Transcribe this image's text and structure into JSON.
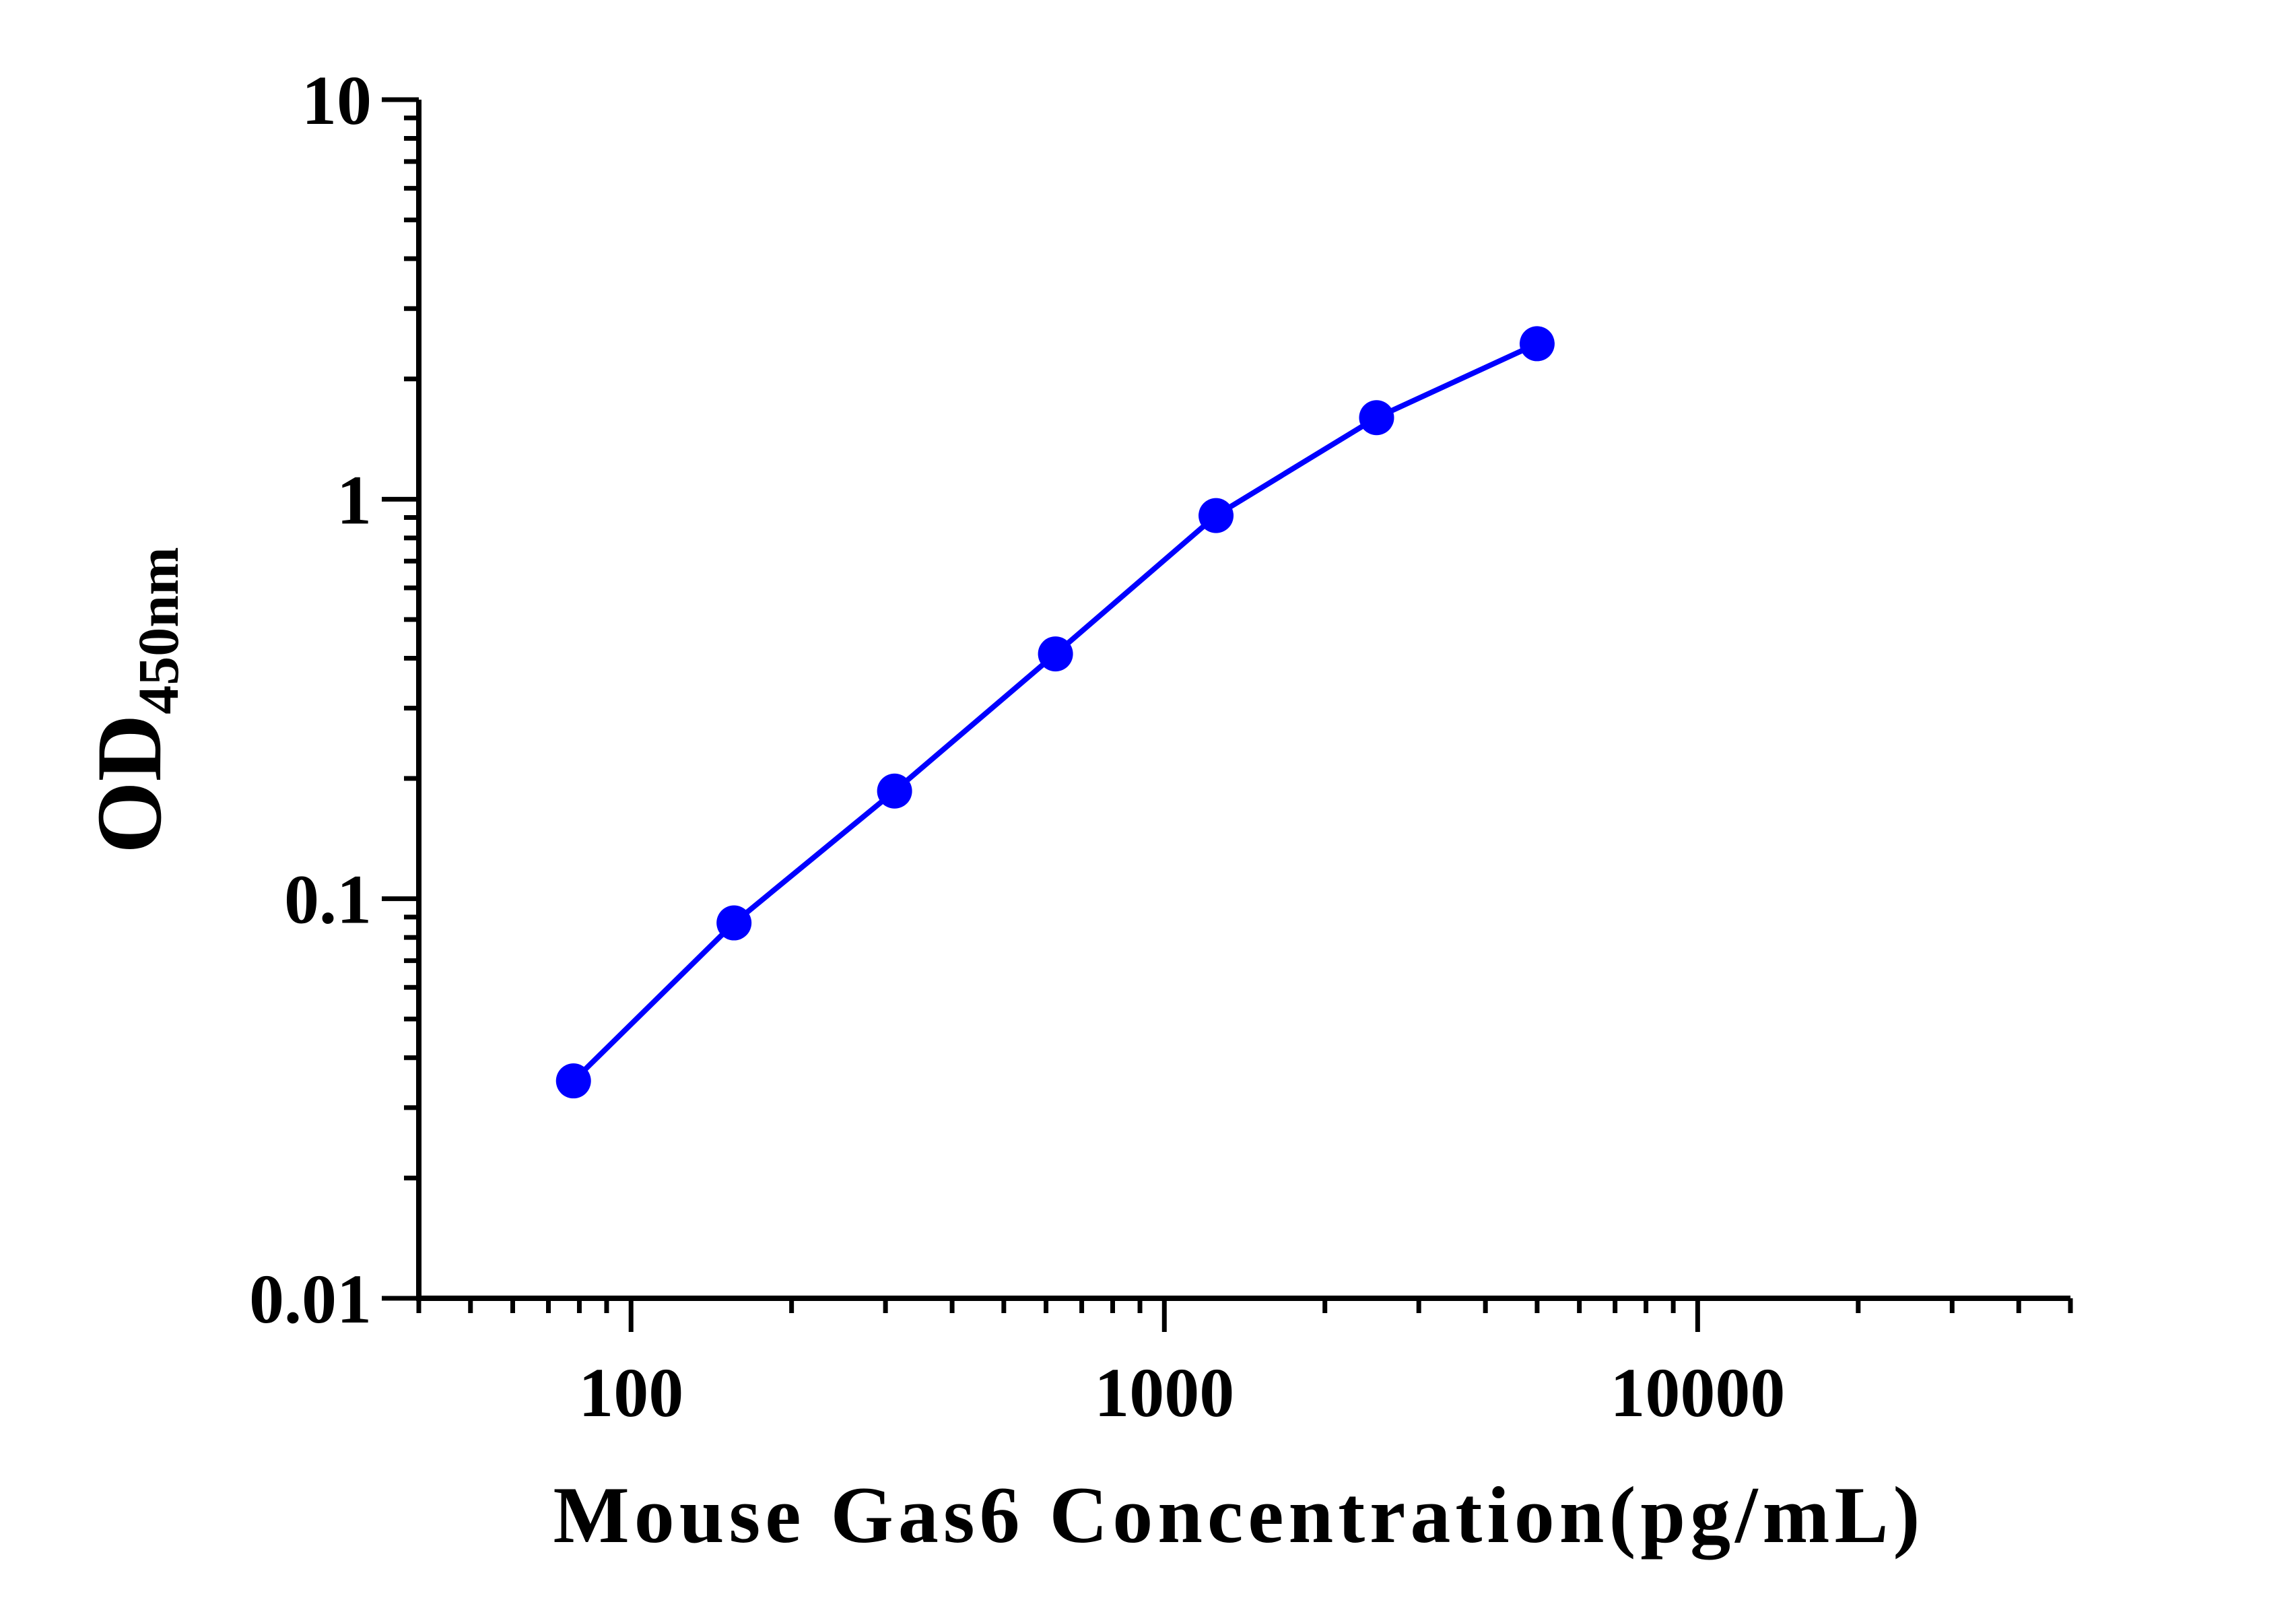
{
  "chart_data": {
    "type": "scatter",
    "title": "",
    "xlabel": "Mouse Gas6 Concentration(pg/mL)",
    "ylabel": {
      "main": "OD",
      "subscript": "450nm"
    },
    "xscale": "log",
    "yscale": "log",
    "xlim": [
      40,
      50000
    ],
    "ylim": [
      0.01,
      10
    ],
    "xticks": [
      {
        "value": 100,
        "label": "100"
      },
      {
        "value": 1000,
        "label": "1000"
      },
      {
        "value": 10000,
        "label": "10000"
      }
    ],
    "yticks": [
      {
        "value": 0.01,
        "label": "0.01"
      },
      {
        "value": 0.1,
        "label": "0.1"
      },
      {
        "value": 1,
        "label": "1"
      },
      {
        "value": 10,
        "label": "10"
      }
    ],
    "grid": false,
    "legend": "none",
    "series": [
      {
        "color": "#0000ff",
        "marker": "circle",
        "line": true,
        "x": [
          78,
          156,
          312,
          625,
          1250,
          2500,
          5000
        ],
        "y": [
          0.035,
          0.087,
          0.186,
          0.41,
          0.91,
          1.6,
          2.45
        ]
      }
    ]
  }
}
